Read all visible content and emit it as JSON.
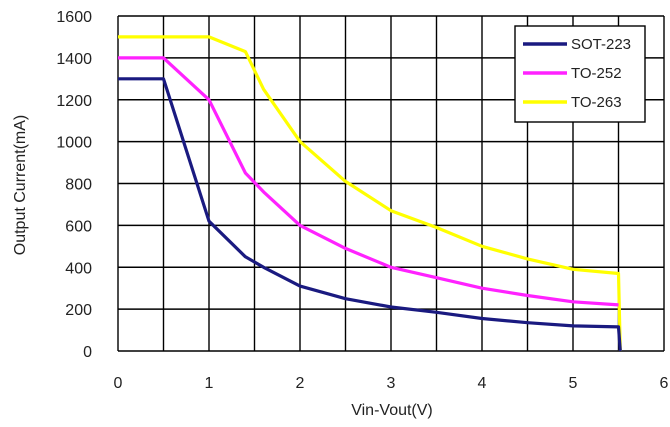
{
  "chart_data": {
    "type": "line",
    "xlabel": "Vin-Vout(V)",
    "ylabel": "Output Current(mA)",
    "xlim": [
      0,
      6
    ],
    "ylim": [
      0,
      1600
    ],
    "x_ticks": [
      "0",
      "1",
      "2",
      "3",
      "4",
      "5",
      "6"
    ],
    "y_ticks": [
      "0",
      "200",
      "400",
      "600",
      "800",
      "1000",
      "1200",
      "1400",
      "1600"
    ],
    "x_grid_step": 0.5,
    "y_grid_step": 200,
    "grid": true,
    "legend_position": "top-right",
    "series": [
      {
        "name": "SOT-223",
        "color": "#1a1a80",
        "points": [
          [
            0,
            1300
          ],
          [
            0.5,
            1300
          ],
          [
            1.0,
            620
          ],
          [
            1.4,
            450
          ],
          [
            1.6,
            400
          ],
          [
            2.0,
            310
          ],
          [
            2.5,
            250
          ],
          [
            3.0,
            210
          ],
          [
            3.5,
            185
          ],
          [
            4.0,
            155
          ],
          [
            4.5,
            135
          ],
          [
            5.0,
            120
          ],
          [
            5.5,
            115
          ],
          [
            5.52,
            0
          ]
        ]
      },
      {
        "name": "TO-252",
        "color": "#ff22ff",
        "points": [
          [
            0,
            1400
          ],
          [
            0.5,
            1400
          ],
          [
            1.0,
            1200
          ],
          [
            1.4,
            850
          ],
          [
            1.6,
            760
          ],
          [
            2.0,
            600
          ],
          [
            2.5,
            490
          ],
          [
            3.0,
            400
          ],
          [
            3.5,
            350
          ],
          [
            4.0,
            300
          ],
          [
            4.5,
            265
          ],
          [
            5.0,
            235
          ],
          [
            5.5,
            220
          ]
        ]
      },
      {
        "name": "TO-263",
        "color": "#ffff00",
        "points": [
          [
            0,
            1500
          ],
          [
            1.0,
            1500
          ],
          [
            1.4,
            1430
          ],
          [
            1.6,
            1250
          ],
          [
            2.0,
            1000
          ],
          [
            2.5,
            810
          ],
          [
            3.0,
            670
          ],
          [
            3.5,
            590
          ],
          [
            4.0,
            500
          ],
          [
            4.5,
            440
          ],
          [
            5.0,
            390
          ],
          [
            5.5,
            370
          ],
          [
            5.52,
            0
          ]
        ]
      }
    ]
  }
}
